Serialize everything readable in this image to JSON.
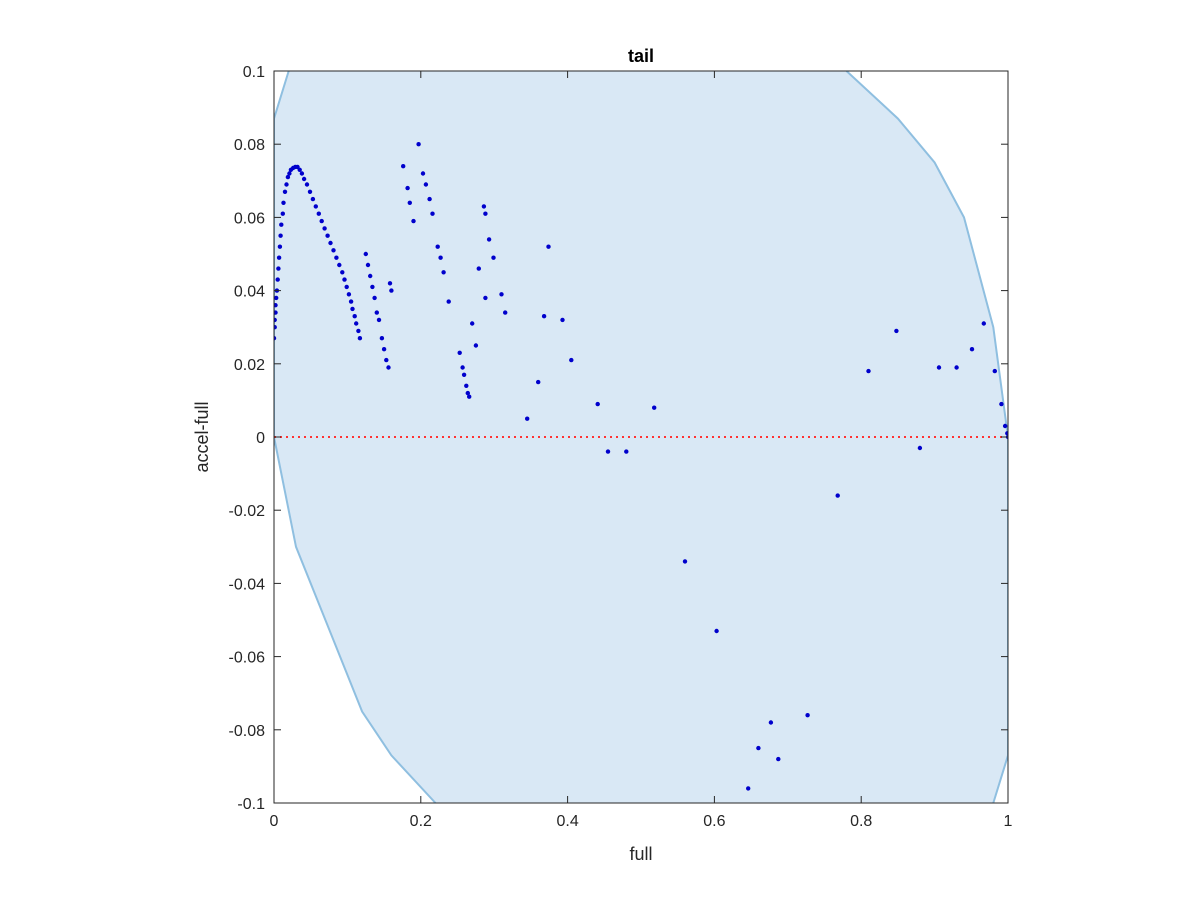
{
  "chart_data": {
    "type": "scatter",
    "title": "tail",
    "xlabel": "full",
    "ylabel": "accel-full",
    "xlim": [
      0,
      1
    ],
    "ylim": [
      -0.1,
      0.1
    ],
    "xticks": [
      0,
      0.2,
      0.4,
      0.6,
      0.8,
      1
    ],
    "xtick_labels": [
      "0",
      "0.2",
      "0.4",
      "0.6",
      "0.8",
      "1"
    ],
    "yticks": [
      -0.1,
      -0.08,
      -0.06,
      -0.04,
      -0.02,
      0,
      0.02,
      0.04,
      0.06,
      0.08,
      0.1
    ],
    "ytick_labels": [
      "-0.1",
      "-0.08",
      "-0.06",
      "-0.04",
      "-0.02",
      "0",
      "0.02",
      "0.04",
      "0.06",
      "0.08",
      "0.1"
    ],
    "grid": false,
    "colors": {
      "points": "#0000cc",
      "region_fill": "#d9e8f5",
      "region_edge": "#8fbfe0",
      "zero_line": "#ff3333"
    },
    "reference_line": {
      "y": 0,
      "style": "dotted"
    },
    "region": {
      "left_boundary": [
        [
          0.02,
          0.1
        ],
        [
          0.0,
          0.087
        ],
        [
          0.0,
          0.0
        ],
        [
          0.03,
          -0.03
        ],
        [
          0.07,
          -0.05
        ],
        [
          0.12,
          -0.075
        ],
        [
          0.16,
          -0.087
        ],
        [
          0.22,
          -0.1
        ]
      ],
      "right_boundary": [
        [
          0.78,
          0.1
        ],
        [
          0.85,
          0.087
        ],
        [
          0.9,
          0.075
        ],
        [
          0.94,
          0.06
        ],
        [
          0.98,
          0.03
        ],
        [
          1.0,
          0.0
        ],
        [
          1.0,
          -0.087
        ],
        [
          0.98,
          -0.1
        ]
      ]
    },
    "series": [
      {
        "points": [
          [
            0.0,
            0.027
          ],
          [
            0.001,
            0.03
          ],
          [
            0.001,
            0.032
          ],
          [
            0.002,
            0.034
          ],
          [
            0.002,
            0.036
          ],
          [
            0.003,
            0.038
          ],
          [
            0.004,
            0.04
          ],
          [
            0.005,
            0.043
          ],
          [
            0.006,
            0.046
          ],
          [
            0.007,
            0.049
          ],
          [
            0.008,
            0.052
          ],
          [
            0.009,
            0.055
          ],
          [
            0.01,
            0.058
          ],
          [
            0.012,
            0.061
          ],
          [
            0.013,
            0.064
          ],
          [
            0.015,
            0.067
          ],
          [
            0.017,
            0.069
          ],
          [
            0.019,
            0.071
          ],
          [
            0.021,
            0.072
          ],
          [
            0.023,
            0.073
          ],
          [
            0.026,
            0.0735
          ],
          [
            0.029,
            0.0738
          ],
          [
            0.032,
            0.0738
          ],
          [
            0.035,
            0.073
          ],
          [
            0.038,
            0.072
          ],
          [
            0.041,
            0.0705
          ],
          [
            0.045,
            0.069
          ],
          [
            0.049,
            0.067
          ],
          [
            0.053,
            0.065
          ],
          [
            0.057,
            0.063
          ],
          [
            0.061,
            0.061
          ],
          [
            0.065,
            0.059
          ],
          [
            0.069,
            0.057
          ],
          [
            0.073,
            0.055
          ],
          [
            0.077,
            0.053
          ],
          [
            0.081,
            0.051
          ],
          [
            0.085,
            0.049
          ],
          [
            0.089,
            0.047
          ],
          [
            0.093,
            0.045
          ],
          [
            0.096,
            0.043
          ],
          [
            0.099,
            0.041
          ],
          [
            0.102,
            0.039
          ],
          [
            0.105,
            0.037
          ],
          [
            0.107,
            0.035
          ],
          [
            0.11,
            0.033
          ],
          [
            0.112,
            0.031
          ],
          [
            0.115,
            0.029
          ],
          [
            0.117,
            0.027
          ],
          [
            0.125,
            0.05
          ],
          [
            0.128,
            0.047
          ],
          [
            0.131,
            0.044
          ],
          [
            0.134,
            0.041
          ],
          [
            0.137,
            0.038
          ],
          [
            0.14,
            0.034
          ],
          [
            0.143,
            0.032
          ],
          [
            0.147,
            0.027
          ],
          [
            0.15,
            0.024
          ],
          [
            0.153,
            0.021
          ],
          [
            0.156,
            0.019
          ],
          [
            0.158,
            0.042
          ],
          [
            0.16,
            0.04
          ],
          [
            0.176,
            0.074
          ],
          [
            0.182,
            0.068
          ],
          [
            0.185,
            0.064
          ],
          [
            0.19,
            0.059
          ],
          [
            0.197,
            0.08
          ],
          [
            0.203,
            0.072
          ],
          [
            0.207,
            0.069
          ],
          [
            0.212,
            0.065
          ],
          [
            0.216,
            0.061
          ],
          [
            0.223,
            0.052
          ],
          [
            0.227,
            0.049
          ],
          [
            0.231,
            0.045
          ],
          [
            0.238,
            0.037
          ],
          [
            0.253,
            0.023
          ],
          [
            0.257,
            0.019
          ],
          [
            0.259,
            0.017
          ],
          [
            0.262,
            0.014
          ],
          [
            0.264,
            0.012
          ],
          [
            0.266,
            0.011
          ],
          [
            0.27,
            0.031
          ],
          [
            0.275,
            0.025
          ],
          [
            0.279,
            0.046
          ],
          [
            0.286,
            0.063
          ],
          [
            0.288,
            0.061
          ],
          [
            0.293,
            0.054
          ],
          [
            0.288,
            0.038
          ],
          [
            0.299,
            0.049
          ],
          [
            0.31,
            0.039
          ],
          [
            0.315,
            0.034
          ],
          [
            0.374,
            0.052
          ],
          [
            0.368,
            0.033
          ],
          [
            0.393,
            0.032
          ],
          [
            0.36,
            0.015
          ],
          [
            0.345,
            0.005
          ],
          [
            0.405,
            0.021
          ],
          [
            0.441,
            0.009
          ],
          [
            0.455,
            -0.004
          ],
          [
            0.48,
            -0.004
          ],
          [
            0.518,
            0.008
          ],
          [
            0.56,
            -0.034
          ],
          [
            0.603,
            -0.053
          ],
          [
            0.646,
            -0.096
          ],
          [
            0.66,
            -0.085
          ],
          [
            0.677,
            -0.078
          ],
          [
            0.687,
            -0.088
          ],
          [
            0.727,
            -0.076
          ],
          [
            0.768,
            -0.016
          ],
          [
            0.81,
            0.018
          ],
          [
            0.848,
            0.029
          ],
          [
            0.88,
            -0.003
          ],
          [
            0.906,
            0.019
          ],
          [
            0.93,
            0.019
          ],
          [
            0.951,
            0.024
          ],
          [
            0.967,
            0.031
          ],
          [
            0.982,
            0.018
          ],
          [
            0.991,
            0.009
          ],
          [
            0.996,
            0.003
          ],
          [
            0.999,
            0.001
          ],
          [
            1.0,
            0.0
          ]
        ]
      }
    ]
  }
}
